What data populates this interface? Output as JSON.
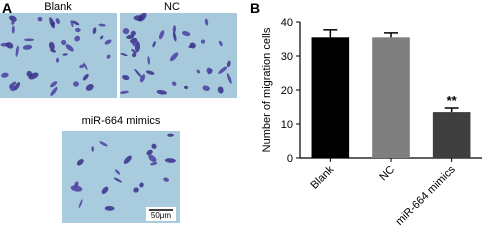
{
  "panels": {
    "a": "A",
    "b": "B"
  },
  "images": [
    {
      "label": "Blank"
    },
    {
      "label": "NC"
    },
    {
      "label": "miR-664 mimics"
    }
  ],
  "scale_bar": "50μm",
  "chart_data": {
    "type": "bar",
    "categories": [
      "Blank",
      "NC",
      "miR-664 mimics"
    ],
    "values": [
      35.5,
      35.5,
      13.5
    ],
    "errors": [
      2.2,
      1.3,
      1.2
    ],
    "colors": [
      "#000000",
      "#7f7f7f",
      "#3f3f3f"
    ],
    "ylabel": "Number of migration cells",
    "annotation": "**",
    "ylim": [
      0,
      40
    ],
    "yticks": [
      0,
      10,
      20,
      30,
      40
    ],
    "grid": false
  }
}
